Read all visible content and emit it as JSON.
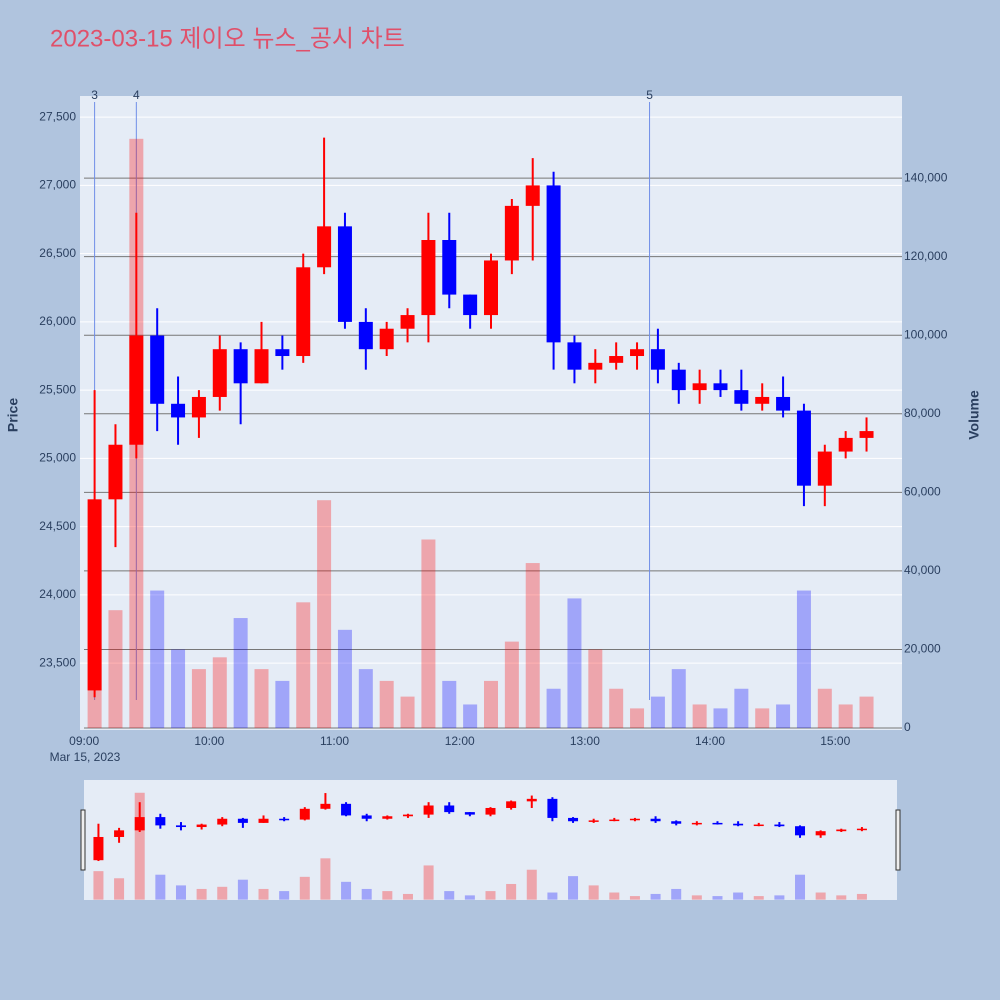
{
  "chart_data": {
    "type": "candlestick",
    "title": "2023-03-15 제이오 뉴스_공시 차트",
    "y_label": "Price",
    "y2_label": "Volume",
    "x_date_label": "Mar 15, 2023",
    "x": [
      "09:00",
      "09:10",
      "09:20",
      "09:30",
      "09:40",
      "09:50",
      "10:00",
      "10:10",
      "10:20",
      "10:30",
      "10:40",
      "10:50",
      "11:00",
      "11:10",
      "11:20",
      "11:30",
      "11:40",
      "11:50",
      "12:00",
      "12:10",
      "12:20",
      "12:30",
      "12:40",
      "12:50",
      "13:00",
      "13:10",
      "13:20",
      "13:30",
      "13:40",
      "13:50",
      "14:00",
      "14:10",
      "14:20",
      "14:30",
      "14:40",
      "14:50",
      "15:00",
      "15:10"
    ],
    "open": [
      23300,
      24700,
      25100,
      25900,
      25400,
      25300,
      25450,
      25800,
      25550,
      25800,
      25750,
      26400,
      26700,
      26000,
      25800,
      25950,
      26050,
      26600,
      26200,
      26050,
      26450,
      26850,
      27000,
      25850,
      25650,
      25700,
      25750,
      25800,
      25650,
      25500,
      25550,
      25500,
      25400,
      25450,
      25350,
      24800,
      25050,
      25150
    ],
    "high": [
      25500,
      25250,
      26800,
      26100,
      25600,
      25500,
      25900,
      25850,
      26000,
      25900,
      26500,
      27350,
      26800,
      26100,
      26000,
      26100,
      26800,
      26800,
      26200,
      26500,
      26900,
      27200,
      27100,
      25900,
      25800,
      25850,
      25850,
      25950,
      25700,
      25650,
      25650,
      25650,
      25550,
      25600,
      25400,
      25100,
      25200,
      25300
    ],
    "low": [
      23250,
      24350,
      25000,
      25200,
      25100,
      25150,
      25350,
      25250,
      25550,
      25650,
      25700,
      26350,
      25950,
      25650,
      25750,
      25850,
      25850,
      26100,
      25950,
      25950,
      26350,
      26450,
      25650,
      25550,
      25550,
      25650,
      25650,
      25550,
      25400,
      25400,
      25450,
      25350,
      25350,
      25300,
      24650,
      24650,
      25000,
      25050
    ],
    "close": [
      24700,
      25100,
      25900,
      25400,
      25300,
      25450,
      25800,
      25550,
      25800,
      25750,
      26400,
      26700,
      26000,
      25800,
      25950,
      26050,
      26600,
      26200,
      26050,
      26450,
      26850,
      27000,
      25850,
      25650,
      25700,
      25750,
      25800,
      25650,
      25500,
      25550,
      25500,
      25400,
      25450,
      25350,
      24800,
      25050,
      25150,
      25200
    ],
    "volume": [
      40000,
      30000,
      150000,
      35000,
      20000,
      15000,
      18000,
      28000,
      15000,
      12000,
      32000,
      58000,
      25000,
      15000,
      12000,
      8000,
      48000,
      12000,
      6000,
      12000,
      22000,
      42000,
      10000,
      33000,
      20000,
      10000,
      5000,
      8000,
      15000,
      6000,
      5000,
      10000,
      5000,
      6000,
      35000,
      10000,
      6000,
      8000
    ],
    "increasing_color": "#ff0000",
    "decreasing_color": "#0000ff",
    "xlim": [
      "08:58",
      "15:32"
    ],
    "xticks": [
      "09:00",
      "10:00",
      "11:00",
      "12:00",
      "13:00",
      "14:00",
      "15:00"
    ],
    "ylim": [
      23010,
      27655
    ],
    "yticks": [
      {
        "value": 23500,
        "label": "23,500"
      },
      {
        "value": 24000,
        "label": "24,000"
      },
      {
        "value": 24500,
        "label": "24,500"
      },
      {
        "value": 25000,
        "label": "25,000"
      },
      {
        "value": 25500,
        "label": "25,500"
      },
      {
        "value": 26000,
        "label": "26,000"
      },
      {
        "value": 26500,
        "label": "26,500"
      },
      {
        "value": 27000,
        "label": "27,000"
      },
      {
        "value": 27500,
        "label": "27,500"
      }
    ],
    "y2lim": [
      -500,
      160900
    ],
    "y2ticks": [
      0,
      {
        "value": 20000,
        "label": "20,000"
      },
      {
        "value": 40000,
        "label": "40,000"
      },
      {
        "value": 60000,
        "label": "60,000"
      },
      {
        "value": 80000,
        "label": "80,000"
      },
      {
        "value": 100000,
        "label": "100,000"
      },
      {
        "value": 120000,
        "label": "120,000"
      },
      {
        "value": 140000,
        "label": "140,000"
      }
    ],
    "annotations": [
      {
        "x": "09:05",
        "label": "3"
      },
      {
        "x": "09:25",
        "label": "4"
      },
      {
        "x": "13:31",
        "label": "5"
      }
    ],
    "grid": true
  }
}
